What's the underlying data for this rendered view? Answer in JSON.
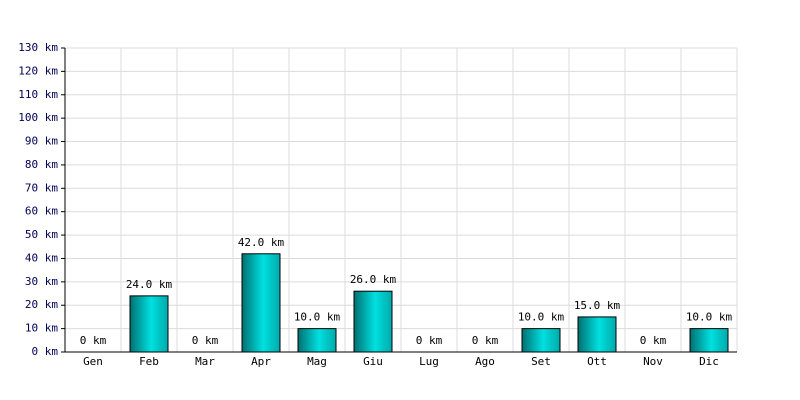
{
  "chart_data": {
    "type": "bar",
    "categories": [
      "Gen",
      "Feb",
      "Mar",
      "Apr",
      "Mag",
      "Giu",
      "Lug",
      "Ago",
      "Set",
      "Ott",
      "Nov",
      "Dic"
    ],
    "values": [
      0,
      24,
      0,
      42,
      10,
      26,
      0,
      0,
      10,
      15,
      0,
      10
    ],
    "value_labels": [
      "0 km",
      "24.0 km",
      "0 km",
      "42.0 km",
      "10.0 km",
      "26.0 km",
      "0 km",
      "0 km",
      "10.0 km",
      "15.0 km",
      "0 km",
      "10.0 km"
    ],
    "color": "#00e0e0",
    "ylim": [
      0,
      130
    ],
    "yticks": [
      {
        "value": 0,
        "label": "0 km"
      },
      {
        "value": 10,
        "label": "10 km"
      },
      {
        "value": 20,
        "label": "20 km"
      },
      {
        "value": 30,
        "label": "30 km"
      },
      {
        "value": 40,
        "label": "40 km"
      },
      {
        "value": 50,
        "label": "50 km"
      },
      {
        "value": 60,
        "label": "60 km"
      },
      {
        "value": 70,
        "label": "70 km"
      },
      {
        "value": 80,
        "label": "80 km"
      },
      {
        "value": 90,
        "label": "90 km"
      },
      {
        "value": 100,
        "label": "100 km"
      },
      {
        "value": 110,
        "label": "110 km"
      },
      {
        "value": 120,
        "label": "120 km"
      },
      {
        "value": 130,
        "label": "130 km"
      }
    ],
    "grid": true
  }
}
